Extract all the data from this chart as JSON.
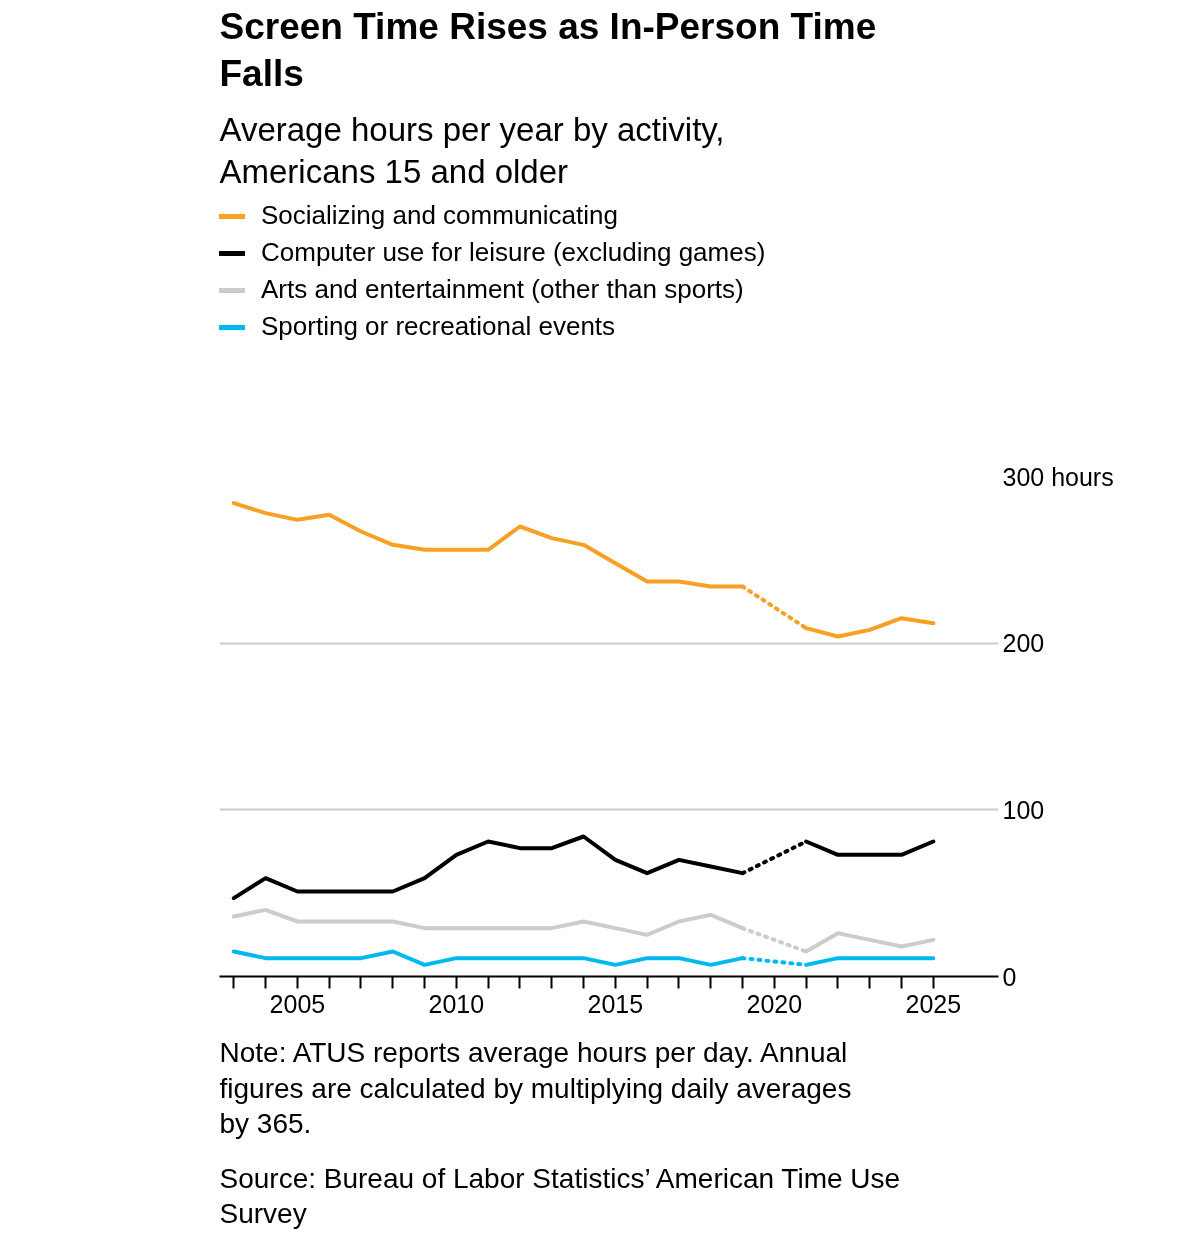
{
  "chart_data": {
    "type": "line",
    "title": "Screen Time Rises as In-Person Time Falls",
    "subtitle": "Average hours per year by activity, Americans 15 and older",
    "x": [
      2003,
      2004,
      2005,
      2006,
      2007,
      2008,
      2009,
      2010,
      2011,
      2012,
      2013,
      2014,
      2015,
      2016,
      2017,
      2018,
      2019,
      2020,
      2021,
      2022,
      2023,
      2024,
      2025
    ],
    "series": [
      {
        "name": "Socializing and communicating",
        "color": "#f7a023",
        "values": [
          284,
          278,
          274,
          277,
          267,
          259,
          256,
          256,
          256,
          270,
          263,
          259,
          248,
          237,
          237,
          234,
          234,
          null,
          209,
          204,
          208,
          215,
          212
        ]
      },
      {
        "name": "Computer use for leisure (excluding games)",
        "color": "#000000",
        "values": [
          47,
          59,
          51,
          51,
          51,
          51,
          59,
          73,
          81,
          77,
          77,
          84,
          70,
          62,
          70,
          66,
          62,
          null,
          81,
          73,
          73,
          73,
          81
        ]
      },
      {
        "name": "Arts and entertainment (other than sports)",
        "color": "#cccccc",
        "values": [
          36,
          40,
          33,
          33,
          33,
          33,
          29,
          29,
          29,
          29,
          29,
          33,
          29,
          25,
          33,
          37,
          29,
          null,
          15,
          26,
          22,
          18,
          22
        ]
      },
      {
        "name": "Sporting or recreational events",
        "color": "#00b8f0",
        "values": [
          15,
          11,
          11,
          11,
          11,
          15,
          7,
          11,
          11,
          11,
          11,
          11,
          7,
          11,
          11,
          7,
          11,
          null,
          7,
          11,
          11,
          11,
          11
        ]
      }
    ],
    "xlim": [
      2002.55,
      2027.05
    ],
    "ylim": [
      0,
      300
    ],
    "xticks": [
      {
        "value": 2003,
        "label": null
      },
      {
        "value": 2004,
        "label": null
      },
      2005,
      {
        "value": 2006,
        "label": null
      },
      {
        "value": 2007,
        "label": null
      },
      {
        "value": 2008,
        "label": null
      },
      {
        "value": 2009,
        "label": null
      },
      2010,
      {
        "value": 2011,
        "label": null
      },
      {
        "value": 2012,
        "label": null
      },
      {
        "value": 2013,
        "label": null
      },
      {
        "value": 2014,
        "label": null
      },
      2015,
      {
        "value": 2016,
        "label": null
      },
      {
        "value": 2017,
        "label": null
      },
      {
        "value": 2018,
        "label": null
      },
      {
        "value": 2019,
        "label": null
      },
      2020,
      {
        "value": 2021,
        "label": null
      },
      {
        "value": 2022,
        "label": null
      },
      {
        "value": 2023,
        "label": null
      },
      {
        "value": 2024,
        "label": null
      },
      2025
    ],
    "yticks": [
      0,
      100,
      200,
      {
        "value": 300,
        "label": "300 hours"
      }
    ],
    "grid": "y",
    "legend": "top",
    "line_style": "solid",
    "marker": "none",
    "annotations": [
      "Note: ATUS reports average hours per day. Annual figures are calculated by multiplying daily averages by 365.",
      "Source: Bureau of Labor Statistics’ American Time Use Survey"
    ]
  }
}
